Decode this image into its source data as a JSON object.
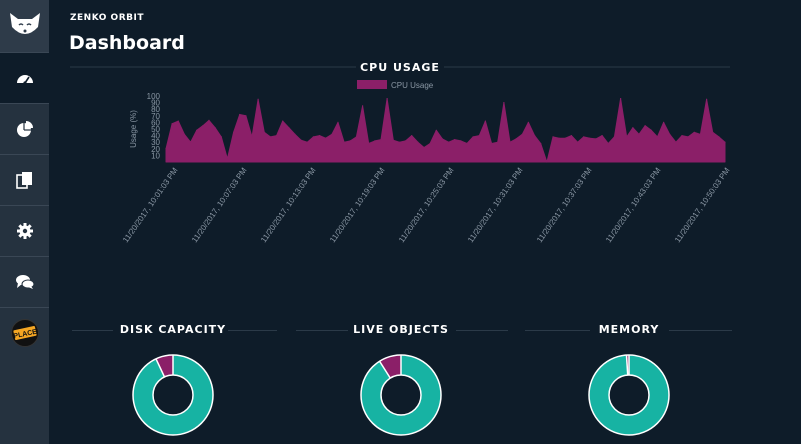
{
  "app": {
    "name": "ZENKO ORBIT",
    "title": "Dashboard"
  },
  "sidebar": {
    "items": [
      {
        "icon": "dashboard-gauge-icon",
        "active": true
      },
      {
        "icon": "pie-chart-icon",
        "active": false
      },
      {
        "icon": "copy-documents-icon",
        "active": false
      },
      {
        "icon": "gear-icon",
        "active": false
      },
      {
        "icon": "chat-bubbles-icon",
        "active": false
      },
      {
        "icon": "place-logo-icon",
        "active": false,
        "badge_text": "PLACE"
      }
    ]
  },
  "colors": {
    "background": "#0e1c29",
    "sidebar": "#25323f",
    "area_fill": "#8b1f68",
    "teal": "#17b3a3",
    "magenta": "#8b1f68",
    "white": "#ffffff"
  },
  "chart_data": {
    "type": "area",
    "title": "CPU USAGE",
    "legend": "CPU Usage",
    "legend_position": "top-center",
    "ylabel": "Usage (%)",
    "ylim": [
      0,
      100
    ],
    "yticks": [
      10,
      20,
      30,
      40,
      50,
      60,
      70,
      80,
      90,
      100
    ],
    "xticks": [
      "11/20/2017, 10:01:03 PM",
      "11/20/2017, 10:07:03 PM",
      "11/20/2017, 10:13:03 PM",
      "11/20/2017, 10:19:03 PM",
      "11/20/2017, 10:25:03 PM",
      "11/20/2017, 10:31:03 PM",
      "11/20/2017, 10:37:03 PM",
      "11/20/2017, 10:43:03 PM",
      "11/20/2017, 10:50:03 PM"
    ],
    "values": [
      20,
      58,
      62,
      42,
      30,
      48,
      55,
      63,
      52,
      38,
      5,
      45,
      72,
      70,
      38,
      95,
      45,
      38,
      40,
      62,
      52,
      42,
      33,
      30,
      38,
      40,
      36,
      42,
      60,
      30,
      32,
      38,
      85,
      28,
      32,
      34,
      96,
      33,
      30,
      32,
      40,
      30,
      22,
      28,
      48,
      35,
      30,
      34,
      32,
      28,
      38,
      40,
      62,
      28,
      30,
      90,
      30,
      35,
      42,
      60,
      40,
      28,
      0,
      38,
      36,
      36,
      40,
      30,
      38,
      36,
      35,
      40,
      28,
      38,
      96,
      38,
      52,
      42,
      55,
      48,
      38,
      60,
      42,
      30,
      40,
      38,
      45,
      42,
      95,
      45,
      38,
      30
    ]
  },
  "donuts": [
    {
      "title": "DISK CAPACITY",
      "used_fraction": 0.07
    },
    {
      "title": "LIVE OBJECTS",
      "used_fraction": 0.09
    },
    {
      "title": "MEMORY",
      "used_fraction": 0.01
    }
  ]
}
